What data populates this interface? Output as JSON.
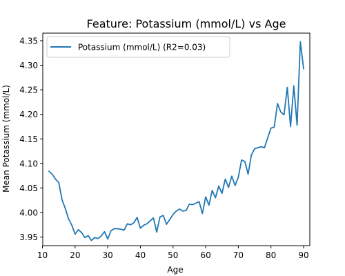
{
  "chart_data": {
    "type": "line",
    "title": "Feature: Potassium (mmol/L) vs Age",
    "xlabel": "Age",
    "ylabel": "Mean Potassium (mmol/L)",
    "xlim": [
      10.1,
      91.9
    ],
    "ylim": [
      3.9325,
      4.3655
    ],
    "xticks": [
      10,
      20,
      30,
      40,
      50,
      60,
      70,
      80,
      90
    ],
    "yticks": [
      3.95,
      4.0,
      4.05,
      4.1,
      4.15,
      4.2,
      4.25,
      4.3,
      4.35
    ],
    "ytick_labels": [
      "3.95",
      "4.00",
      "4.05",
      "4.10",
      "4.15",
      "4.20",
      "4.25",
      "4.30",
      "4.35"
    ],
    "grid": false,
    "legend_position": "top-left",
    "series": [
      {
        "name": "Potassium (mmol/L) (R2=0.03)",
        "color": "#1f77b4",
        "x": [
          12,
          13,
          14,
          15,
          16,
          17,
          18,
          19,
          20,
          21,
          22,
          23,
          24,
          25,
          26,
          27,
          28,
          29,
          30,
          31,
          32,
          33,
          34,
          35,
          36,
          37,
          38,
          39,
          40,
          41,
          42,
          43,
          44,
          45,
          46,
          47,
          48,
          49,
          50,
          51,
          52,
          53,
          54,
          55,
          56,
          57,
          58,
          59,
          60,
          61,
          62,
          63,
          64,
          65,
          66,
          67,
          68,
          69,
          70,
          71,
          72,
          73,
          74,
          75,
          76,
          77,
          78,
          79,
          80,
          81,
          82,
          83,
          84,
          85,
          86,
          87,
          88,
          89,
          90
        ],
        "y": [
          4.084,
          4.078,
          4.068,
          4.061,
          4.026,
          4.008,
          3.987,
          3.974,
          3.956,
          3.965,
          3.959,
          3.949,
          3.953,
          3.943,
          3.949,
          3.947,
          3.952,
          3.961,
          3.946,
          3.963,
          3.967,
          3.967,
          3.966,
          3.964,
          3.977,
          3.975,
          3.979,
          3.99,
          3.968,
          3.974,
          3.977,
          3.983,
          3.989,
          3.96,
          3.991,
          3.994,
          3.976,
          3.986,
          3.996,
          4.003,
          4.007,
          4.003,
          4.004,
          4.017,
          4.016,
          4.019,
          4.022,
          3.998,
          4.032,
          4.015,
          4.045,
          4.03,
          4.054,
          4.039,
          4.068,
          4.051,
          4.074,
          4.055,
          4.072,
          4.107,
          4.104,
          4.078,
          4.117,
          4.13,
          4.132,
          4.134,
          4.132,
          4.152,
          4.172,
          4.174,
          4.222,
          4.205,
          4.199,
          4.255,
          4.175,
          4.258,
          4.178,
          4.348,
          4.293
        ]
      }
    ]
  }
}
